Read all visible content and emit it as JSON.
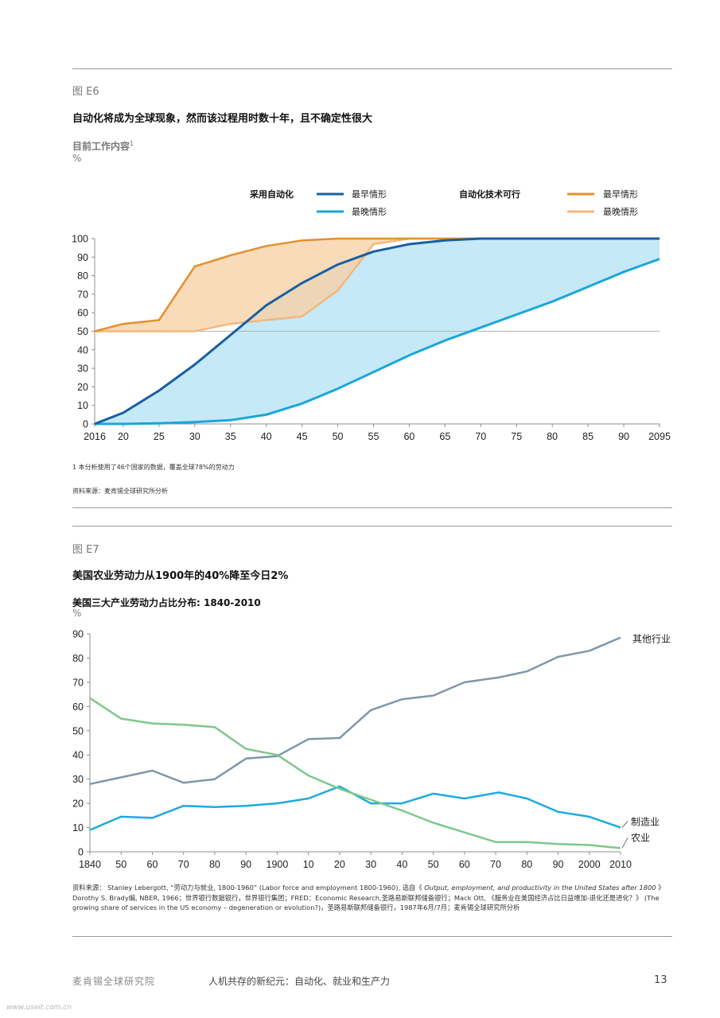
{
  "figE6": {
    "label": "图 E6",
    "title": "自动化将成为全球现象，然而该过程用时数十年，且不确定性很大",
    "subtitle": "目前工作内容",
    "subtitle_sup": "1",
    "unit": "%",
    "legend": {
      "group1_title": "采用自动化",
      "group1_early": "最早情形",
      "group1_late": "最晚情形",
      "group2_title": "自动化技术可行",
      "group2_early": "最早情形",
      "group2_late": "最晚情形"
    },
    "footnote": "1 本分析使用了46个国家的数据，覆盖全球78%的劳动力",
    "source": "资料来源：麦肯锡全球研究所分析"
  },
  "figE7": {
    "label": "图 E7",
    "title": "美国农业劳动力从1900年的40%降至今日2%",
    "subtitle": "美国三大产业劳动力占比分布: 1840-2010",
    "unit": "%",
    "source_parts": {
      "a": "资料来源：  Stanley Lebergott, “劳动力与就业, 1800-1960” (Labor force and employment 1800-1960), 选自《 ",
      "b": "Output, employment, and productivity in the United States after 1800",
      "c": " 》Dorothy S. Brady编,  NBER, 1966；世界银行数据银行，世界银行集团；FRED：Economic Research,圣路易斯联邦储备银行；Mack Ott, 《服务业在美国经济占比日益增加-退化还是进化？》 (The growing share of services in the US economy – degeneration or evolution?)，圣路易斯联邦储备银行，1987年6月/7月；麦肯锡全球研究所分析"
    }
  },
  "footer": {
    "org": "麦肯锡全球研究院",
    "report": "人机共存的新纪元：自动化、就业和生产力",
    "page": "13"
  },
  "watermark": "www.useit.com.cn",
  "chart_data": [
    {
      "type": "area",
      "colors": {
        "adoption_early": "#1a5fa0",
        "adoption_late": "#19a6da",
        "adoption_fill": "#c5e9f6",
        "feasible_early": "#e0912e",
        "feasible_late": "#f4b77a",
        "feasible_fill": "#f8cfa2"
      },
      "x_ticks": [
        "2016",
        "20",
        "25",
        "30",
        "35",
        "40",
        "45",
        "50",
        "55",
        "60",
        "65",
        "70",
        "75",
        "80",
        "85",
        "90",
        "2095"
      ],
      "x": [
        2016,
        2020,
        2025,
        2030,
        2035,
        2040,
        2045,
        2050,
        2055,
        2060,
        2065,
        2070,
        2075,
        2080,
        2085,
        2090,
        2095
      ],
      "xlim": [
        2016,
        2095
      ],
      "ylim": [
        0,
        100
      ],
      "y_ticks": [
        "0",
        "10",
        "20",
        "30",
        "40",
        "50",
        "60",
        "70",
        "80",
        "90",
        "100"
      ],
      "reference_line": 50,
      "series": [
        {
          "name": "采用自动化 最早情形",
          "key": "adoption_early",
          "values": [
            0,
            6,
            18,
            32,
            48,
            64,
            76,
            86,
            93,
            97,
            99,
            100,
            100,
            100,
            100,
            100,
            100
          ]
        },
        {
          "name": "采用自动化 最晚情形",
          "key": "adoption_late",
          "values": [
            0,
            0,
            0.3,
            1,
            2,
            5,
            11,
            19,
            28,
            37,
            45,
            52,
            59,
            66,
            74,
            82,
            89
          ]
        },
        {
          "name": "自动化技术可行 最早情形",
          "key": "feasible_early",
          "values": [
            50,
            54,
            56,
            85,
            91,
            96,
            99,
            100,
            100,
            100,
            100,
            100,
            100,
            100,
            100,
            100,
            100
          ]
        },
        {
          "name": "自动化技术可行 最晚情形",
          "key": "feasible_late",
          "values": [
            50,
            50,
            50,
            50,
            54,
            56,
            58,
            72,
            97,
            100,
            100,
            100,
            100,
            100,
            100,
            100,
            100
          ]
        }
      ]
    },
    {
      "type": "line",
      "x_ticks": [
        "1840",
        "50",
        "60",
        "70",
        "80",
        "90",
        "1900",
        "10",
        "20",
        "30",
        "40",
        "50",
        "60",
        "70",
        "80",
        "90",
        "2000",
        "2010"
      ],
      "x": [
        1840,
        1850,
        1860,
        1870,
        1880,
        1890,
        1900,
        1910,
        1920,
        1930,
        1940,
        1950,
        1960,
        1970,
        1980,
        1990,
        2000,
        2010
      ],
      "xlim": [
        1840,
        2010
      ],
      "ylim": [
        0,
        90
      ],
      "y_ticks": [
        "0",
        "10",
        "20",
        "30",
        "40",
        "50",
        "60",
        "70",
        "80",
        "90"
      ],
      "series": [
        {
          "name": "其他行业",
          "color": "#7e98a8",
          "points": [
            [
              1840,
              28
            ],
            [
              1860,
              33.5
            ],
            [
              1870,
              28.5
            ],
            [
              1880,
              30
            ],
            [
              1890,
              38.5
            ],
            [
              1900,
              39.5
            ],
            [
              1910,
              46.5
            ],
            [
              1920,
              47
            ],
            [
              1930,
              58.5
            ],
            [
              1940,
              63
            ],
            [
              1950,
              64.5
            ],
            [
              1960,
              70
            ],
            [
              1971,
              72
            ],
            [
              1980,
              74.5
            ],
            [
              1990,
              80.5
            ],
            [
              2000,
              83
            ],
            [
              2010,
              88.5
            ]
          ]
        },
        {
          "name": "制造业",
          "color": "#1eaadf",
          "points": [
            [
              1840,
              9
            ],
            [
              1850,
              14.5
            ],
            [
              1860,
              14
            ],
            [
              1870,
              19
            ],
            [
              1880,
              18.5
            ],
            [
              1890,
              19
            ],
            [
              1900,
              20
            ],
            [
              1910,
              22
            ],
            [
              1920,
              27
            ],
            [
              1930,
              20
            ],
            [
              1940,
              20
            ],
            [
              1950,
              24
            ],
            [
              1960,
              22
            ],
            [
              1971,
              24.5
            ],
            [
              1980,
              22
            ],
            [
              1990,
              16.5
            ],
            [
              2000,
              14.5
            ],
            [
              2010,
              10
            ]
          ]
        },
        {
          "name": "农业",
          "color": "#7ec88c",
          "points": [
            [
              1840,
              63.5
            ],
            [
              1850,
              55
            ],
            [
              1860,
              53
            ],
            [
              1870,
              52.5
            ],
            [
              1880,
              51.5
            ],
            [
              1890,
              42.5
            ],
            [
              1900,
              40
            ],
            [
              1910,
              31.5
            ],
            [
              1920,
              26
            ],
            [
              1930,
              21.5
            ],
            [
              1940,
              17
            ],
            [
              1950,
              12
            ],
            [
              1960,
              8
            ],
            [
              1970,
              4
            ],
            [
              1980,
              4
            ],
            [
              1990,
              3.2
            ],
            [
              2000,
              2.8
            ],
            [
              2010,
              1.5
            ]
          ]
        }
      ]
    }
  ]
}
